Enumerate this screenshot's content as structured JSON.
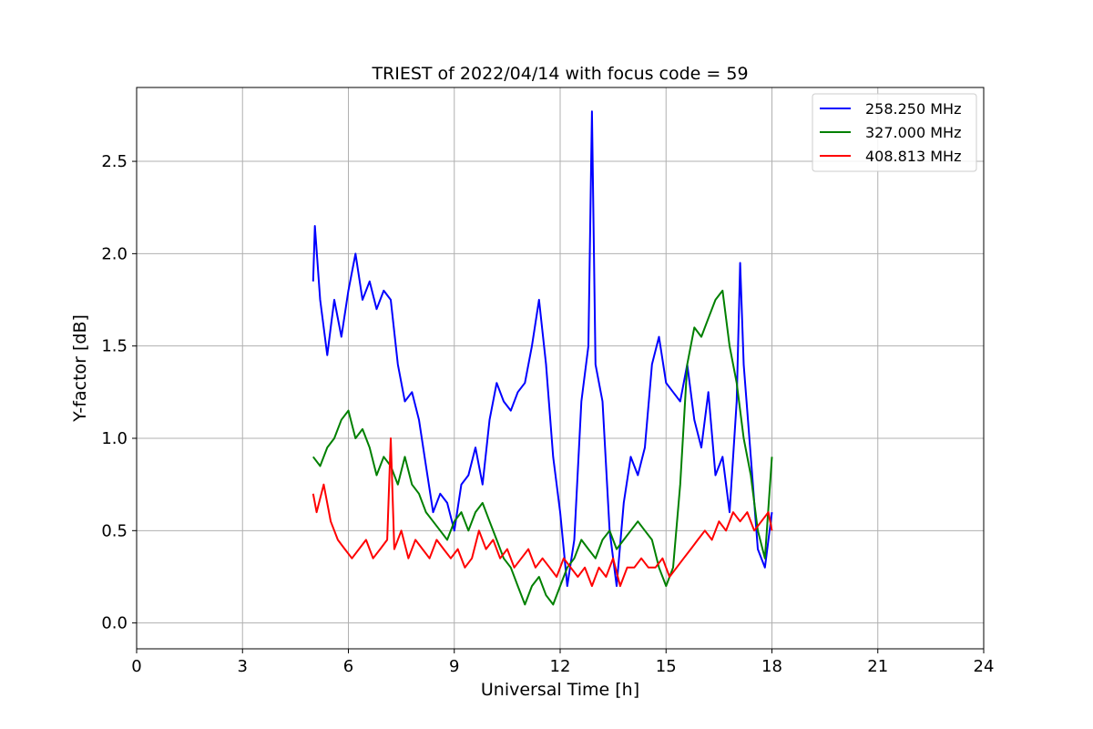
{
  "chart_data": {
    "type": "line",
    "title": "TRIEST of 2022/04/14 with focus code = 59",
    "xlabel": "Universal Time [h]",
    "ylabel": "Y-factor [dB]",
    "xlim": [
      0,
      24
    ],
    "ylim": [
      -0.14,
      2.9
    ],
    "xticks": [
      0,
      3,
      6,
      9,
      12,
      15,
      18,
      21,
      24
    ],
    "yticks": [
      0.0,
      0.5,
      1.0,
      1.5,
      2.0,
      2.5
    ],
    "ytick_labels": [
      "0.0",
      "0.5",
      "1.0",
      "1.5",
      "2.0",
      "2.5"
    ],
    "grid": true,
    "legend_position": "top-right",
    "series": [
      {
        "name": "258.250 MHz",
        "color": "#0000ff",
        "x": [
          5.0,
          5.05,
          5.2,
          5.4,
          5.5,
          5.6,
          5.8,
          6.0,
          6.2,
          6.4,
          6.6,
          6.8,
          7.0,
          7.2,
          7.4,
          7.6,
          7.8,
          8.0,
          8.2,
          8.4,
          8.6,
          8.8,
          9.0,
          9.2,
          9.4,
          9.6,
          9.8,
          10.0,
          10.2,
          10.4,
          10.6,
          10.8,
          11.0,
          11.2,
          11.4,
          11.6,
          11.8,
          12.0,
          12.2,
          12.4,
          12.6,
          12.8,
          12.9,
          13.0,
          13.2,
          13.4,
          13.6,
          13.8,
          14.0,
          14.2,
          14.4,
          14.6,
          14.8,
          15.0,
          15.2,
          15.4,
          15.6,
          15.8,
          16.0,
          16.2,
          16.4,
          16.6,
          16.8,
          17.0,
          17.1,
          17.2,
          17.4,
          17.6,
          17.8,
          18.0
        ],
        "y": [
          1.85,
          2.15,
          1.75,
          1.45,
          1.6,
          1.75,
          1.55,
          1.8,
          2.0,
          1.75,
          1.85,
          1.7,
          1.8,
          1.75,
          1.4,
          1.2,
          1.25,
          1.1,
          0.85,
          0.6,
          0.7,
          0.65,
          0.5,
          0.75,
          0.8,
          0.95,
          0.75,
          1.1,
          1.3,
          1.2,
          1.15,
          1.25,
          1.3,
          1.5,
          1.75,
          1.4,
          0.9,
          0.6,
          0.2,
          0.45,
          1.2,
          1.5,
          2.77,
          1.4,
          1.2,
          0.5,
          0.2,
          0.65,
          0.9,
          0.8,
          0.95,
          1.4,
          1.55,
          1.3,
          1.25,
          1.2,
          1.4,
          1.1,
          0.95,
          1.25,
          0.8,
          0.9,
          0.6,
          1.2,
          1.95,
          1.4,
          0.9,
          0.4,
          0.3,
          0.6
        ]
      },
      {
        "name": "327.000 MHz",
        "color": "#008000",
        "x": [
          5.0,
          5.2,
          5.4,
          5.6,
          5.8,
          6.0,
          6.2,
          6.4,
          6.6,
          6.8,
          7.0,
          7.2,
          7.4,
          7.6,
          7.8,
          8.0,
          8.2,
          8.4,
          8.6,
          8.8,
          9.0,
          9.2,
          9.4,
          9.6,
          9.8,
          10.0,
          10.2,
          10.4,
          10.6,
          10.8,
          11.0,
          11.2,
          11.4,
          11.6,
          11.8,
          12.0,
          12.2,
          12.4,
          12.6,
          12.8,
          13.0,
          13.2,
          13.4,
          13.6,
          13.8,
          14.0,
          14.2,
          14.4,
          14.6,
          14.8,
          15.0,
          15.2,
          15.4,
          15.6,
          15.8,
          16.0,
          16.2,
          16.4,
          16.6,
          16.8,
          17.0,
          17.2,
          17.4,
          17.6,
          17.8,
          18.0
        ],
        "y": [
          0.9,
          0.85,
          0.95,
          1.0,
          1.1,
          1.15,
          1.0,
          1.05,
          0.95,
          0.8,
          0.9,
          0.85,
          0.75,
          0.9,
          0.75,
          0.7,
          0.6,
          0.55,
          0.5,
          0.45,
          0.55,
          0.6,
          0.5,
          0.6,
          0.65,
          0.55,
          0.45,
          0.35,
          0.3,
          0.2,
          0.1,
          0.2,
          0.25,
          0.15,
          0.1,
          0.2,
          0.3,
          0.35,
          0.45,
          0.4,
          0.35,
          0.45,
          0.5,
          0.4,
          0.45,
          0.5,
          0.55,
          0.5,
          0.45,
          0.3,
          0.2,
          0.3,
          0.75,
          1.4,
          1.6,
          1.55,
          1.65,
          1.75,
          1.8,
          1.5,
          1.3,
          1.0,
          0.8,
          0.5,
          0.35,
          0.9
        ]
      },
      {
        "name": "408.813 MHz",
        "color": "#ff0000",
        "x": [
          5.0,
          5.1,
          5.3,
          5.5,
          5.7,
          5.9,
          6.1,
          6.3,
          6.5,
          6.7,
          6.9,
          7.1,
          7.2,
          7.3,
          7.5,
          7.7,
          7.9,
          8.1,
          8.3,
          8.5,
          8.7,
          8.9,
          9.1,
          9.3,
          9.5,
          9.7,
          9.9,
          10.1,
          10.3,
          10.5,
          10.7,
          10.9,
          11.1,
          11.3,
          11.5,
          11.7,
          11.9,
          12.1,
          12.3,
          12.5,
          12.7,
          12.9,
          13.1,
          13.3,
          13.5,
          13.7,
          13.9,
          14.1,
          14.3,
          14.5,
          14.7,
          14.9,
          15.1,
          15.3,
          15.5,
          15.7,
          15.9,
          16.1,
          16.3,
          16.5,
          16.7,
          16.9,
          17.1,
          17.3,
          17.5,
          17.7,
          17.9,
          18.0
        ],
        "y": [
          0.7,
          0.6,
          0.75,
          0.55,
          0.45,
          0.4,
          0.35,
          0.4,
          0.45,
          0.35,
          0.4,
          0.45,
          1.0,
          0.4,
          0.5,
          0.35,
          0.45,
          0.4,
          0.35,
          0.45,
          0.4,
          0.35,
          0.4,
          0.3,
          0.35,
          0.5,
          0.4,
          0.45,
          0.35,
          0.4,
          0.3,
          0.35,
          0.4,
          0.3,
          0.35,
          0.3,
          0.25,
          0.35,
          0.3,
          0.25,
          0.3,
          0.2,
          0.3,
          0.25,
          0.35,
          0.2,
          0.3,
          0.3,
          0.35,
          0.3,
          0.3,
          0.35,
          0.25,
          0.3,
          0.35,
          0.4,
          0.45,
          0.5,
          0.45,
          0.55,
          0.5,
          0.6,
          0.55,
          0.6,
          0.5,
          0.55,
          0.6,
          0.5
        ]
      }
    ]
  }
}
